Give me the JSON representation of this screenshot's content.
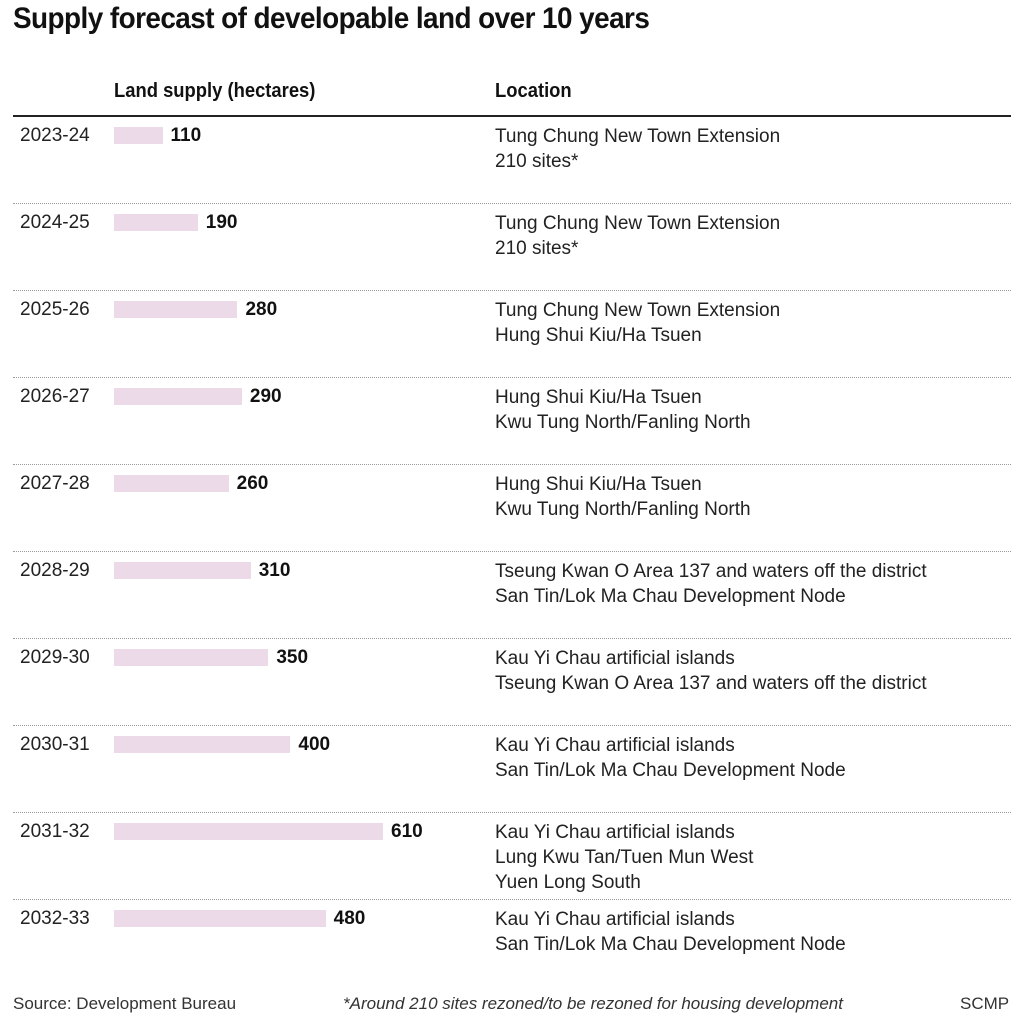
{
  "chart_data": {
    "type": "bar",
    "orientation": "horizontal",
    "title": "Supply forecast of developable land over 10 years",
    "xlabel": "Land supply (hectares)",
    "ylabel": "",
    "columns": [
      "Land supply (hectares)",
      "Location"
    ],
    "categories": [
      "2023-24",
      "2024-25",
      "2025-26",
      "2026-27",
      "2027-28",
      "2028-29",
      "2029-30",
      "2030-31",
      "2031-32",
      "2032-33"
    ],
    "values": [
      110,
      190,
      280,
      290,
      260,
      310,
      350,
      400,
      610,
      480
    ],
    "xlim": [
      0,
      610
    ],
    "grid": false,
    "bar_color": "#ecdae8",
    "rows": [
      {
        "period": "2023-24",
        "value": 110,
        "label": "110",
        "locations": [
          "Tung Chung New Town Extension",
          "210 sites*"
        ]
      },
      {
        "period": "2024-25",
        "value": 190,
        "label": "190",
        "locations": [
          "Tung Chung New Town Extension",
          "210 sites*"
        ]
      },
      {
        "period": "2025-26",
        "value": 280,
        "label": "280",
        "locations": [
          "Tung Chung New Town Extension",
          "Hung Shui Kiu/Ha Tsuen"
        ]
      },
      {
        "period": "2026-27",
        "value": 290,
        "label": "290",
        "locations": [
          "Hung Shui Kiu/Ha Tsuen",
          "Kwu Tung North/Fanling North"
        ]
      },
      {
        "period": "2027-28",
        "value": 260,
        "label": "260",
        "locations": [
          "Hung Shui Kiu/Ha Tsuen",
          "Kwu Tung North/Fanling North"
        ]
      },
      {
        "period": "2028-29",
        "value": 310,
        "label": "310",
        "locations": [
          "Tseung Kwan O Area 137 and waters off the district",
          "San Tin/Lok Ma Chau Development Node"
        ]
      },
      {
        "period": "2029-30",
        "value": 350,
        "label": "350",
        "locations": [
          "Kau Yi Chau artificial islands",
          "Tseung Kwan O Area 137 and waters off the district"
        ]
      },
      {
        "period": "2030-31",
        "value": 400,
        "label": "400",
        "locations": [
          "Kau Yi Chau artificial islands",
          "San Tin/Lok Ma Chau Development Node"
        ]
      },
      {
        "period": "2031-32",
        "value": 610,
        "label": "610",
        "locations": [
          "Kau Yi Chau artificial islands",
          "Lung Kwu Tan/Tuen Mun West",
          "Yuen Long South"
        ]
      },
      {
        "period": "2032-33",
        "value": 480,
        "label": "480",
        "locations": [
          "Kau Yi Chau artificial islands",
          "San Tin/Lok Ma Chau Development Node"
        ]
      }
    ]
  },
  "footer": {
    "source": "Source: Development Bureau",
    "note": "*Around 210 sites rezoned/to be rezoned for housing development",
    "credit": "SCMP"
  }
}
